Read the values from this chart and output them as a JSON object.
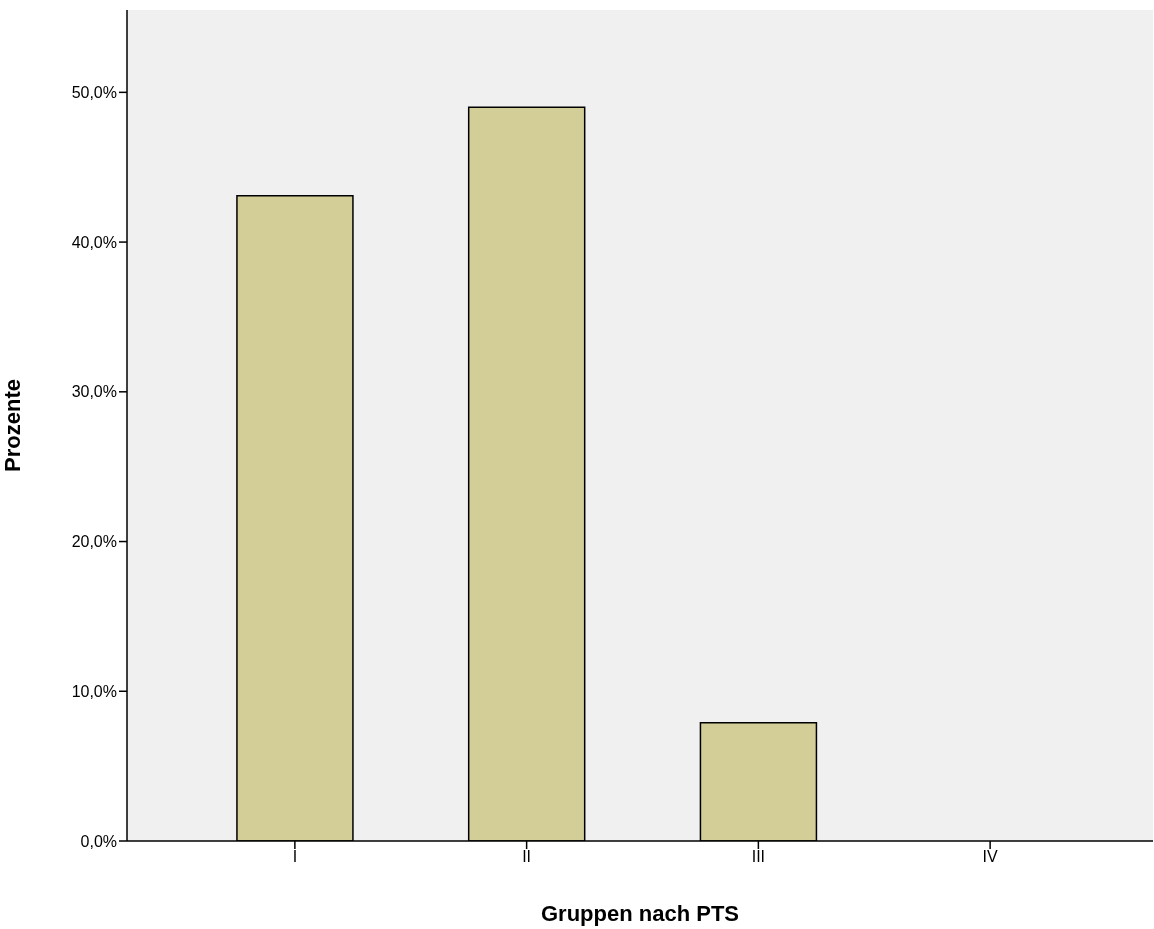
{
  "chart_data": {
    "type": "bar",
    "xlabel": "Gruppen nach PTS",
    "ylabel": "Prozente",
    "categories": [
      "I",
      "II",
      "III",
      "IV"
    ],
    "values": [
      43.1,
      49.0,
      7.9,
      0
    ],
    "color": "#d3ce98",
    "ylim": [
      0,
      55.5
    ],
    "yticks": [
      {
        "value": 0,
        "label": "0,0%"
      },
      {
        "value": 10,
        "label": "10,0%"
      },
      {
        "value": 20,
        "label": "20,0%"
      },
      {
        "value": 30,
        "label": "30,0%"
      },
      {
        "value": 40,
        "label": "40,0%"
      },
      {
        "value": 50,
        "label": "50,0%"
      }
    ],
    "grid": false,
    "legend": false
  }
}
